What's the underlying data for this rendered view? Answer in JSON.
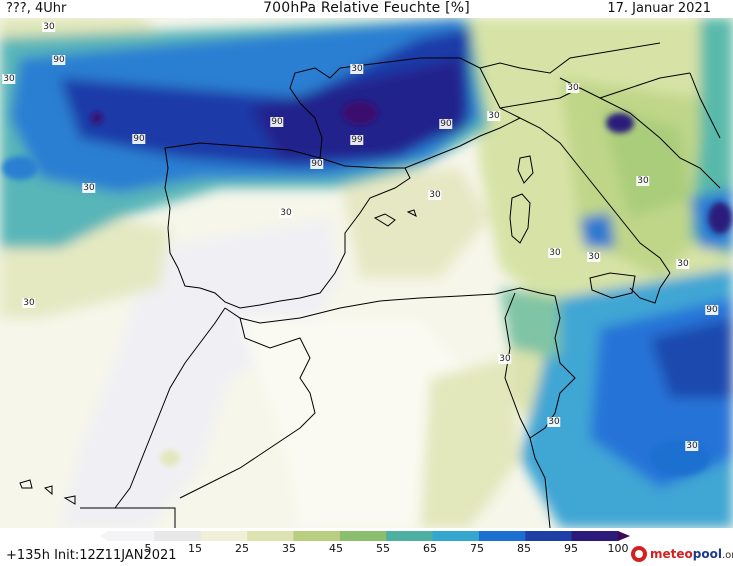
{
  "header": {
    "left": "???, 4Uhr",
    "title": "700hPa Relative Feuchte [%]",
    "date": "17. Januar 2021"
  },
  "footer": {
    "init": "+135h Init:12Z11JAN2021"
  },
  "colorbar": {
    "ticks": [
      "5",
      "15",
      "25",
      "35",
      "45",
      "55",
      "65",
      "75",
      "85",
      "95",
      "100"
    ],
    "colors": [
      "#f4f4f6",
      "#e8e8e8",
      "#f0f0d8",
      "#dde3b0",
      "#b8cf82",
      "#8bbf6e",
      "#4eb0a0",
      "#35a7cf",
      "#1b6fd0",
      "#1f3fa8",
      "#2b1a7a",
      "#3a0a55"
    ]
  },
  "contour_labels": [
    {
      "text": "30"
    },
    {
      "text": "90"
    },
    {
      "text": "30"
    },
    {
      "text": "30"
    },
    {
      "text": "90"
    },
    {
      "text": "90"
    },
    {
      "text": "99"
    },
    {
      "text": "90"
    },
    {
      "text": "90"
    },
    {
      "text": "30"
    },
    {
      "text": "30"
    },
    {
      "text": "30"
    },
    {
      "text": "30"
    },
    {
      "text": "30"
    },
    {
      "text": "30"
    },
    {
      "text": "30"
    },
    {
      "text": "30"
    },
    {
      "text": "30"
    },
    {
      "text": "90"
    },
    {
      "text": "30"
    },
    {
      "text": "30"
    },
    {
      "text": "30"
    }
  ],
  "logo": {
    "brand": "meteo",
    "name": "pool",
    "tld": ".org"
  }
}
